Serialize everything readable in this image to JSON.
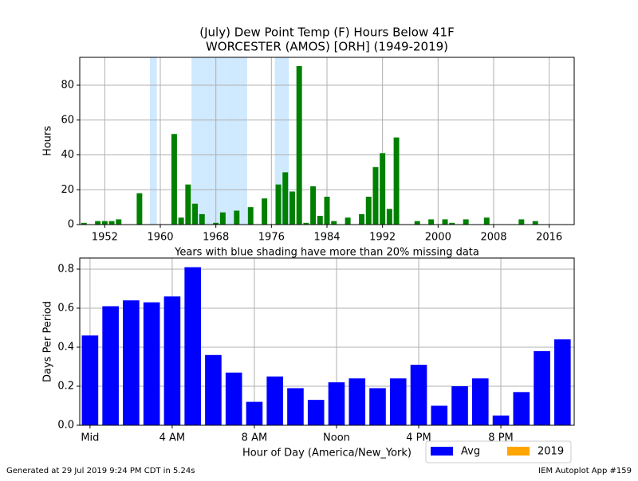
{
  "chart_data": [
    {
      "type": "bar",
      "title": "(July) Dew Point Temp (F) Hours Below 41F",
      "subtitle": "WORCESTER (AMOS) [ORH] (1949-2019)",
      "y_label": "Hours",
      "annotation": "Years with blue shading have more than 20% missing data",
      "x": [
        1949,
        1950,
        1951,
        1952,
        1953,
        1954,
        1955,
        1956,
        1957,
        1958,
        1959,
        1960,
        1961,
        1962,
        1963,
        1964,
        1965,
        1966,
        1967,
        1968,
        1969,
        1970,
        1971,
        1972,
        1973,
        1974,
        1975,
        1976,
        1977,
        1978,
        1979,
        1980,
        1981,
        1982,
        1983,
        1984,
        1985,
        1986,
        1987,
        1988,
        1989,
        1990,
        1991,
        1992,
        1993,
        1994,
        1995,
        1996,
        1997,
        1998,
        1999,
        2000,
        2001,
        2002,
        2003,
        2004,
        2005,
        2006,
        2007,
        2008,
        2009,
        2010,
        2011,
        2012,
        2013,
        2014,
        2015,
        2016,
        2017,
        2018,
        2019
      ],
      "values": [
        1,
        0,
        2,
        2,
        2,
        3,
        0,
        0,
        18,
        0,
        0,
        0,
        0,
        52,
        4,
        23,
        12,
        6,
        0,
        1,
        7,
        0,
        8,
        0,
        10,
        0,
        15,
        0,
        23,
        30,
        19,
        91,
        1,
        22,
        5,
        16,
        2,
        0,
        4,
        0,
        6,
        16,
        33,
        41,
        9,
        50,
        0,
        0,
        2,
        0,
        3,
        0,
        3,
        1,
        0,
        3,
        0,
        0,
        4,
        0,
        0,
        0,
        0,
        3,
        0,
        2,
        0,
        0,
        0,
        0,
        0
      ],
      "color": "#008000",
      "shaded_years": [
        1959,
        1965,
        1966,
        1967,
        1968,
        1969,
        1970,
        1971,
        1972,
        1977,
        1978
      ],
      "shade_color": "#cfe9fe",
      "xlim": [
        1948.4,
        2019.6
      ],
      "xticks": [
        1952,
        1960,
        1968,
        1976,
        1984,
        1992,
        2000,
        2008,
        2016
      ],
      "ylim": [
        0,
        96
      ],
      "yticks": [
        0,
        20,
        40,
        60,
        80
      ],
      "grid": true
    },
    {
      "type": "bar",
      "x_label": "Hour of Day (America/New_York)",
      "y_label": "Days Per Period",
      "x": [
        0,
        1,
        2,
        3,
        4,
        5,
        6,
        7,
        8,
        9,
        10,
        11,
        12,
        13,
        14,
        15,
        16,
        17,
        18,
        19,
        20,
        21,
        22,
        23
      ],
      "series": [
        {
          "name": "Avg",
          "color": "#0000ff",
          "values": [
            0.46,
            0.61,
            0.64,
            0.63,
            0.66,
            0.81,
            0.36,
            0.27,
            0.12,
            0.25,
            0.19,
            0.13,
            0.22,
            0.24,
            0.19,
            0.24,
            0.31,
            0.1,
            0.2,
            0.24,
            0.05,
            0.17,
            0.38,
            0.44
          ]
        },
        {
          "name": "2019",
          "color": "#ffa500",
          "values": [
            0,
            0,
            0,
            0,
            0,
            0,
            0,
            0,
            0,
            0,
            0,
            0,
            0,
            0,
            0,
            0,
            0,
            0,
            0,
            0,
            0,
            0,
            0,
            0
          ]
        }
      ],
      "xlim": [
        -0.5,
        23.57
      ],
      "xticks": [
        {
          "value": 0,
          "label": "Mid"
        },
        {
          "value": 4,
          "label": "4 AM"
        },
        {
          "value": 8,
          "label": "8 AM"
        },
        {
          "value": 12,
          "label": "Noon"
        },
        {
          "value": 16,
          "label": "4 PM"
        },
        {
          "value": 20,
          "label": "8 PM"
        }
      ],
      "ylim": [
        0,
        0.857
      ],
      "yticks": [
        {
          "value": 0,
          "label": "0.0"
        },
        {
          "value": 0.2,
          "label": "0.2"
        },
        {
          "value": 0.4,
          "label": "0.4"
        },
        {
          "value": 0.6,
          "label": "0.6"
        },
        {
          "value": 0.8,
          "label": "0.8"
        }
      ],
      "grid": true,
      "legend": "below-right"
    }
  ],
  "footer": {
    "left": "Generated at 29 Jul 2019 9:24 PM CDT in 5.24s",
    "right": "IEM Autoplot App #159"
  }
}
